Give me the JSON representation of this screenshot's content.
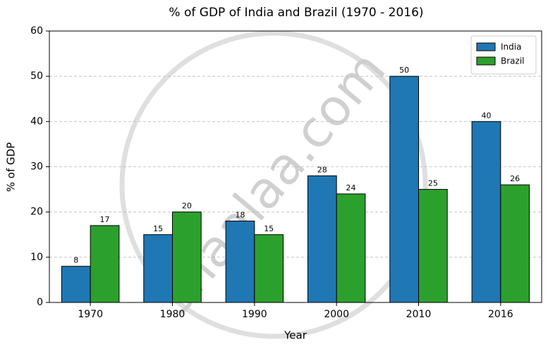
{
  "chart_data": {
    "type": "bar",
    "title": "% of GDP of India and Brazil (1970 - 2016)",
    "x_label": "Year",
    "y_label": "% of GDP",
    "categories": [
      "1970",
      "1980",
      "1990",
      "2000",
      "2010",
      "2016"
    ],
    "series": [
      {
        "name": "India",
        "color": "#1f77b4",
        "values": [
          8,
          15,
          18,
          28,
          50,
          40
        ]
      },
      {
        "name": "Brazil",
        "color": "#2ca02c",
        "values": [
          17,
          20,
          15,
          24,
          25,
          26
        ]
      }
    ],
    "ylim": [
      0,
      60
    ],
    "yticks": [
      0,
      10,
      20,
      30,
      40,
      50,
      60
    ],
    "grid": true,
    "legend": "upper right",
    "watermark": "shaalaa.com"
  }
}
